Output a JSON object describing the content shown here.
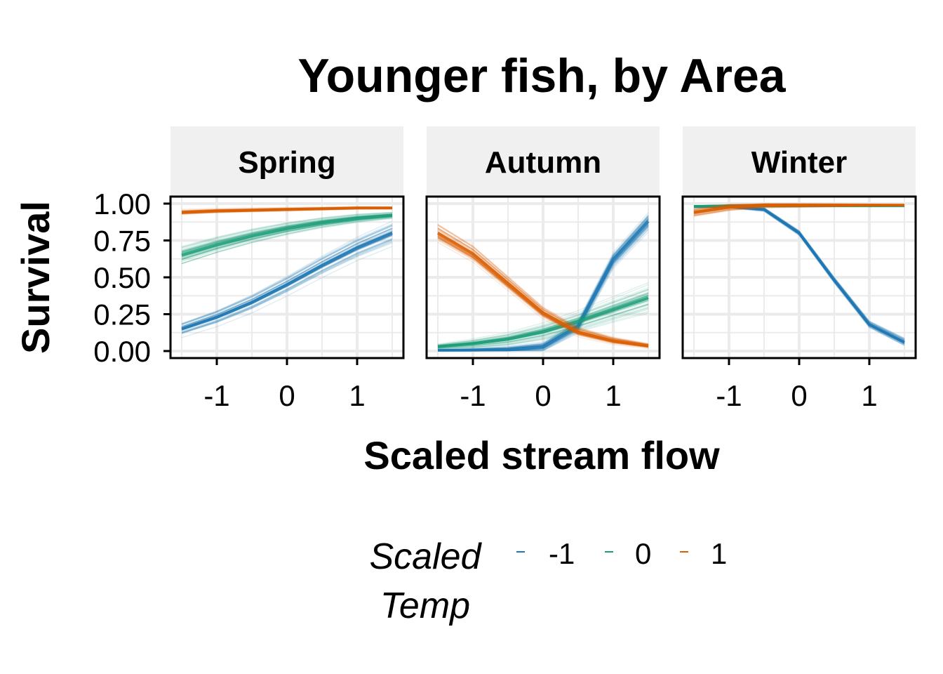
{
  "chart_data": {
    "type": "line",
    "title": "Younger fish, by Area",
    "xlabel": "Scaled stream flow",
    "ylabel": "Survival",
    "xlim": [
      -1.5,
      1.5
    ],
    "ylim": [
      0,
      1
    ],
    "x_ticks": [
      -1,
      0,
      1
    ],
    "x_tick_labels": [
      "-1",
      "0",
      "1"
    ],
    "y_ticks": [
      0,
      0.25,
      0.5,
      0.75,
      1
    ],
    "y_tick_labels": [
      "0.00",
      "0.25",
      "0.50",
      "0.75",
      "1.00"
    ],
    "grid": true,
    "legend": {
      "title": "Scaled Temp",
      "title_lines": [
        "Scaled",
        "Temp"
      ],
      "position": "bottom",
      "entries": [
        {
          "label": "-1",
          "color": "#1f77b4"
        },
        {
          "label": "0",
          "color": "#1b9e77"
        },
        {
          "label": "1",
          "color": "#d95f02"
        }
      ]
    },
    "x": [
      -1.5,
      -1,
      -0.5,
      0,
      0.5,
      1,
      1.5
    ],
    "panels": [
      {
        "label": "Spring",
        "series": [
          {
            "name": "-1",
            "color": "#1f77b4",
            "values": [
              0.15,
              0.23,
              0.33,
              0.45,
              0.58,
              0.7,
              0.8
            ],
            "spread": [
              0.07,
              0.13
            ]
          },
          {
            "name": "0",
            "color": "#1b9e77",
            "values": [
              0.65,
              0.72,
              0.78,
              0.83,
              0.87,
              0.9,
              0.92
            ],
            "spread": [
              0.09,
              0.03
            ]
          },
          {
            "name": "1",
            "color": "#d95f02",
            "values": [
              0.94,
              0.95,
              0.955,
              0.96,
              0.965,
              0.97,
              0.97
            ],
            "spread": [
              0.02,
              0.01
            ]
          }
        ]
      },
      {
        "label": "Autumn",
        "series": [
          {
            "name": "-1",
            "color": "#1f77b4",
            "values": [
              0.005,
              0.006,
              0.01,
              0.03,
              0.17,
              0.62,
              0.88
            ],
            "spread": [
              0.005,
              0.08
            ]
          },
          {
            "name": "0",
            "color": "#1b9e77",
            "values": [
              0.03,
              0.05,
              0.08,
              0.13,
              0.2,
              0.28,
              0.36
            ],
            "spread": [
              0.02,
              0.12
            ]
          },
          {
            "name": "1",
            "color": "#d95f02",
            "values": [
              0.8,
              0.66,
              0.46,
              0.26,
              0.13,
              0.07,
              0.035
            ],
            "spread": [
              0.08,
              0.02
            ]
          }
        ]
      },
      {
        "label": "Winter",
        "series": [
          {
            "name": "-1",
            "color": "#1f77b4",
            "values": [
              0.98,
              0.98,
              0.96,
              0.8,
              0.48,
              0.18,
              0.06
            ],
            "spread": [
              0.01,
              0.04
            ]
          },
          {
            "name": "0",
            "color": "#1b9e77",
            "values": [
              0.98,
              0.985,
              0.985,
              0.985,
              0.985,
              0.985,
              0.985
            ],
            "spread": [
              0.01,
              0.005
            ]
          },
          {
            "name": "1",
            "color": "#d95f02",
            "values": [
              0.94,
              0.975,
              0.99,
              0.99,
              0.99,
              0.99,
              0.99
            ],
            "spread": [
              0.04,
              0.005
            ]
          }
        ]
      }
    ]
  }
}
